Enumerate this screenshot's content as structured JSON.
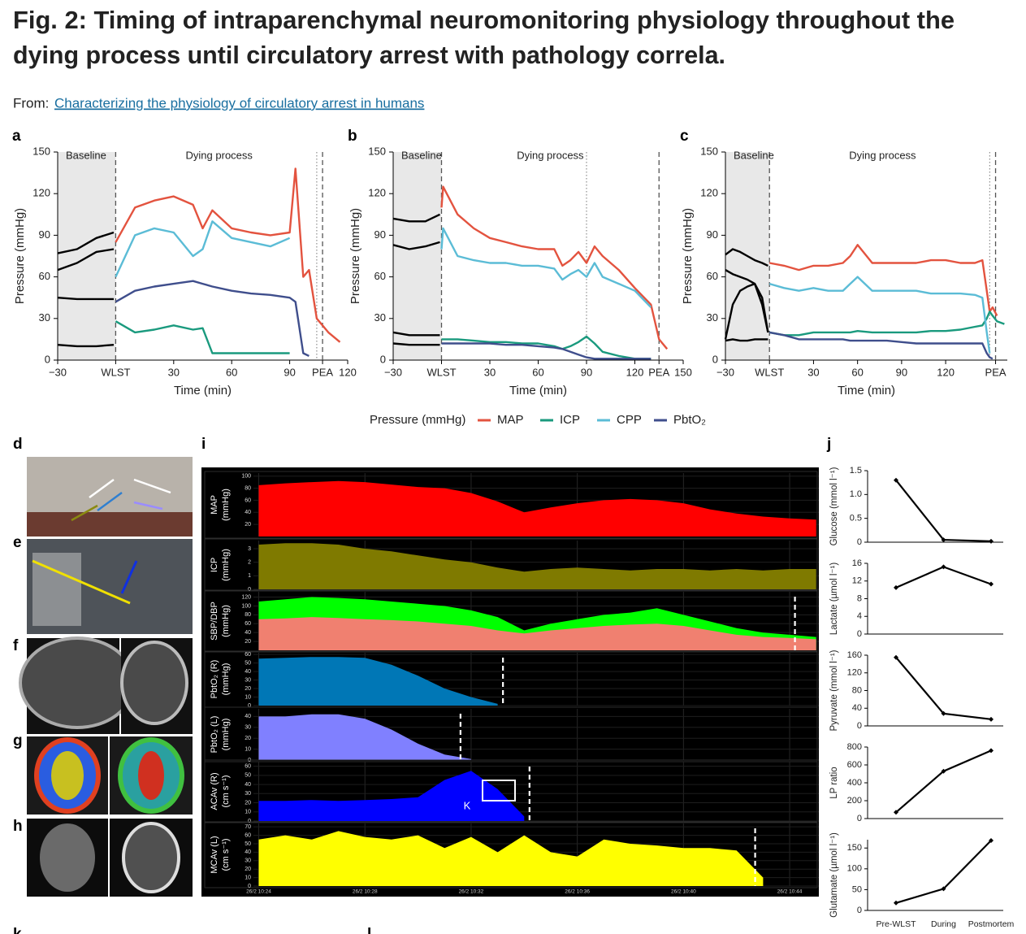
{
  "title": [
    "Fig. 2: Timing of intraparenchymal neuromonitoring physiology throughout the",
    "dying process until circulatory arrest with pathology correla."
  ],
  "source": {
    "prefix": "From:",
    "link": "Characterizing the physiology of circulatory arrest in humans"
  },
  "legend_title": "Pressure (mmHg)",
  "panel_labels": [
    "d",
    "e",
    "f",
    "g",
    "h",
    "k",
    "l"
  ],
  "chart_data": [
    {
      "type": "line",
      "panel_label": "a",
      "ylabel": "Pressure (mmHg)",
      "xlabel": "Time (min)",
      "annotations": [
        "Baseline",
        "Dying process"
      ],
      "xlim": [
        -30,
        120
      ],
      "ylim": [
        0,
        150
      ],
      "yticks": [
        0,
        30,
        60,
        90,
        120,
        150
      ],
      "xticks": [
        {
          "value": -30,
          "label": "−30"
        },
        {
          "value": 0,
          "label": "WLST"
        },
        30,
        60,
        90,
        {
          "value": 107,
          "label": "PEA"
        },
        120
      ],
      "baseline_x": [
        -30,
        0
      ],
      "baseline_color": "#000000",
      "dashed_x": [
        0,
        107
      ],
      "dotted_x": 104,
      "x": [
        -30,
        -20,
        -10,
        -1,
        0,
        10,
        20,
        30,
        40,
        45,
        50,
        60,
        70,
        80,
        90,
        93,
        97,
        100,
        104,
        110,
        116
      ],
      "series": [
        {
          "name": "MAP",
          "color": "#e3533f",
          "values": [
            77,
            80,
            88,
            92,
            85,
            110,
            115,
            118,
            112,
            95,
            108,
            95,
            92,
            90,
            92,
            138,
            60,
            65,
            30,
            20,
            13
          ]
        },
        {
          "name": "ICP",
          "color": "#1a9a7e",
          "values": [
            11,
            10,
            10,
            11,
            28,
            20,
            22,
            25,
            22,
            23,
            5,
            5,
            5,
            5,
            5,
            null,
            null,
            null,
            null,
            null,
            null
          ]
        },
        {
          "name": "CPP",
          "color": "#5bbcd6",
          "values": [
            65,
            70,
            78,
            80,
            60,
            90,
            95,
            92,
            75,
            80,
            100,
            88,
            85,
            82,
            88,
            null,
            null,
            null,
            null,
            null,
            null
          ]
        },
        {
          "name": "PbtO₂",
          "color": "#3f4e8c",
          "values": [
            45,
            44,
            44,
            44,
            42,
            50,
            53,
            55,
            57,
            55,
            53,
            50,
            48,
            47,
            45,
            42,
            5,
            3,
            null,
            null,
            null
          ]
        }
      ]
    },
    {
      "type": "line",
      "panel_label": "b",
      "ylabel": "Pressure (mmHg)",
      "xlabel": "Time (min)",
      "annotations": [
        "Baseline",
        "Dying process"
      ],
      "xlim": [
        -30,
        150
      ],
      "ylim": [
        0,
        150
      ],
      "yticks": [
        0,
        30,
        60,
        90,
        120,
        150
      ],
      "xticks": [
        {
          "value": -30,
          "label": "−30"
        },
        {
          "value": 0,
          "label": "WLST"
        },
        30,
        60,
        90,
        120,
        {
          "value": 135,
          "label": "PEA"
        },
        150
      ],
      "baseline_x": [
        -30,
        0
      ],
      "baseline_color": "#000000",
      "dashed_x": [
        0,
        135
      ],
      "dotted_x": 90,
      "x": [
        -30,
        -20,
        -10,
        -1,
        0,
        1,
        10,
        20,
        30,
        40,
        50,
        60,
        70,
        75,
        80,
        85,
        90,
        95,
        100,
        110,
        120,
        130,
        135,
        140
      ],
      "series": [
        {
          "color": "#e3533f",
          "values": [
            102,
            100,
            100,
            105,
            110,
            125,
            105,
            95,
            88,
            85,
            82,
            80,
            80,
            68,
            72,
            78,
            70,
            82,
            75,
            65,
            52,
            40,
            15,
            8
          ]
        },
        {
          "color": "#1a9a7e",
          "values": [
            20,
            18,
            18,
            18,
            15,
            15,
            15,
            14,
            13,
            13,
            12,
            12,
            10,
            8,
            10,
            13,
            17,
            12,
            6,
            3,
            1,
            1,
            null,
            null
          ]
        },
        {
          "color": "#5bbcd6",
          "values": [
            83,
            80,
            82,
            85,
            80,
            95,
            75,
            72,
            70,
            70,
            68,
            68,
            66,
            58,
            62,
            65,
            60,
            70,
            60,
            55,
            50,
            38,
            null,
            null
          ]
        },
        {
          "color": "#3f4e8c",
          "values": [
            12,
            11,
            11,
            11,
            12,
            12,
            12,
            12,
            12,
            11,
            11,
            10,
            9,
            8,
            6,
            4,
            2,
            1,
            1,
            1,
            1,
            1,
            null,
            null
          ]
        }
      ]
    },
    {
      "type": "line",
      "panel_label": "c",
      "ylabel": "Pressure (mmHg)",
      "xlabel": "Time (min)",
      "annotations": [
        "Baseline",
        "Dying process"
      ],
      "xlim": [
        -30,
        162
      ],
      "ylim": [
        0,
        150
      ],
      "yticks": [
        0,
        30,
        60,
        90,
        120,
        150
      ],
      "xticks": [
        {
          "value": -30,
          "label": "−30"
        },
        {
          "value": 0,
          "label": "WLST"
        },
        30,
        60,
        90,
        120,
        {
          "value": 154,
          "label": "PEA"
        }
      ],
      "baseline_x": [
        -30,
        0
      ],
      "baseline_color": "#000000",
      "dashed_x": [
        0,
        154
      ],
      "dotted_x": 150,
      "x": [
        -30,
        -25,
        -20,
        -15,
        -10,
        -5,
        -1,
        0,
        10,
        20,
        30,
        40,
        50,
        55,
        60,
        70,
        80,
        90,
        100,
        110,
        120,
        130,
        140,
        145,
        148,
        150,
        152,
        155,
        160
      ],
      "series": [
        {
          "color": "#e3533f",
          "values": [
            76,
            80,
            78,
            75,
            72,
            70,
            68,
            70,
            68,
            65,
            68,
            68,
            70,
            75,
            83,
            70,
            70,
            70,
            70,
            72,
            72,
            70,
            70,
            72,
            50,
            35,
            38,
            32,
            null
          ]
        },
        {
          "color": "#1a9a7e",
          "values": [
            14,
            15,
            14,
            14,
            15,
            15,
            15,
            20,
            18,
            18,
            20,
            20,
            20,
            20,
            21,
            20,
            20,
            20,
            20,
            21,
            21,
            22,
            24,
            25,
            30,
            35,
            32,
            28,
            26
          ]
        },
        {
          "color": "#5bbcd6",
          "values": [
            65,
            62,
            60,
            58,
            55,
            45,
            20,
            55,
            52,
            50,
            52,
            50,
            50,
            55,
            60,
            50,
            50,
            50,
            50,
            48,
            48,
            48,
            47,
            45,
            20,
            5,
            null,
            null,
            null
          ]
        },
        {
          "color": "#3f4e8c",
          "values": [
            15,
            40,
            50,
            53,
            55,
            40,
            20,
            20,
            18,
            15,
            15,
            15,
            15,
            14,
            14,
            14,
            14,
            13,
            12,
            12,
            12,
            12,
            12,
            12,
            5,
            2,
            1,
            null,
            null
          ]
        }
      ]
    },
    {
      "type": "area",
      "panel_label": "i",
      "xlim": [
        23.8,
        45.1
      ],
      "xticks": [
        {
          "value": 24,
          "label": "26/2 10:24"
        },
        {
          "value": 28,
          "label": "26/2 10:28"
        },
        {
          "value": 32,
          "label": "26/2 10:32"
        },
        {
          "value": 36,
          "label": "26/2 10:36"
        },
        {
          "value": 40,
          "label": "26/2 10:40"
        },
        {
          "value": 44,
          "label": "26/2 10:44"
        }
      ],
      "x": [
        24,
        25,
        26,
        27,
        28,
        29,
        30,
        31,
        32,
        33,
        34,
        35,
        36,
        37,
        38,
        39,
        40,
        41,
        42,
        43,
        44,
        45
      ],
      "tracks": [
        {
          "ylabel": [
            "MAP",
            "(mmHg)"
          ],
          "ylim": [
            0,
            105
          ],
          "yticks": [
            20,
            40,
            60,
            80,
            100
          ],
          "series": [
            {
              "color": "#ff0000",
              "values": [
                85,
                88,
                90,
                92,
                90,
                86,
                82,
                80,
                72,
                58,
                40,
                48,
                55,
                60,
                62,
                60,
                55,
                45,
                38,
                33,
                30,
                28
              ]
            }
          ]
        },
        {
          "ylabel": [
            "ICP",
            "(mmHg)"
          ],
          "ylim": [
            0,
            3.6
          ],
          "yticks": [
            0,
            1,
            2,
            3
          ],
          "series": [
            {
              "color": "#7f7a00",
              "values": [
                3.3,
                3.4,
                3.4,
                3.3,
                3.0,
                2.8,
                2.5,
                2.2,
                2.0,
                1.6,
                1.3,
                1.5,
                1.6,
                1.5,
                1.4,
                1.5,
                1.5,
                1.4,
                1.5,
                1.4,
                1.5,
                1.5
              ]
            }
          ]
        },
        {
          "ylabel": [
            "SBP/DBP",
            "(mmHg)"
          ],
          "ylim": [
            0,
            132
          ],
          "yticks": [
            20,
            40,
            60,
            80,
            100,
            120
          ],
          "marker_x": 44.2,
          "series": [
            {
              "color": "#00ff00",
              "values": [
                110,
                115,
                120,
                118,
                115,
                110,
                105,
                100,
                90,
                75,
                45,
                60,
                70,
                80,
                85,
                95,
                80,
                65,
                50,
                40,
                35,
                30
              ]
            },
            {
              "color": "#f08070",
              "values": [
                70,
                72,
                75,
                73,
                70,
                68,
                65,
                60,
                55,
                45,
                38,
                45,
                50,
                55,
                58,
                60,
                55,
                45,
                35,
                30,
                28,
                25
              ]
            }
          ]
        },
        {
          "ylabel": [
            "PbtO₂ (R)",
            "(mmHg)"
          ],
          "ylim": [
            0,
            62
          ],
          "yticks": [
            0,
            10,
            20,
            30,
            40,
            50,
            60
          ],
          "marker_x": 33.2,
          "series": [
            {
              "color": "#0077b6",
              "values": [
                55,
                56,
                57,
                57,
                56,
                48,
                35,
                20,
                10,
                2,
                null,
                null,
                null,
                null,
                null,
                null,
                null,
                null,
                null,
                null,
                null,
                null
              ]
            }
          ]
        },
        {
          "ylabel": [
            "PbtO₂ (L)",
            "(mmHg)"
          ],
          "ylim": [
            0,
            47
          ],
          "yticks": [
            0,
            10,
            20,
            30,
            40
          ],
          "marker_x": 31.6,
          "series": [
            {
              "color": "#8080ff",
              "values": [
                40,
                40,
                42,
                42,
                38,
                28,
                15,
                5,
                1,
                null,
                null,
                null,
                null,
                null,
                null,
                null,
                null,
                null,
                null,
                null,
                null,
                null
              ]
            }
          ]
        },
        {
          "ylabel": [
            "ACAv (R)",
            "(cm s⁻¹)"
          ],
          "ylim": [
            0,
            65
          ],
          "yticks": [
            0,
            10,
            20,
            30,
            40,
            50,
            60
          ],
          "marker_x": 34.2,
          "annotation": "K",
          "series": [
            {
              "color": "#0000ff",
              "values": [
                22,
                22,
                23,
                22,
                23,
                24,
                26,
                45,
                55,
                35,
                5,
                null,
                null,
                null,
                null,
                null,
                null,
                null,
                null,
                null,
                null,
                null
              ]
            }
          ]
        },
        {
          "ylabel": [
            "MCAv (L)",
            "(cm s⁻¹)"
          ],
          "ylim": [
            0,
            74
          ],
          "yticks": [
            0,
            10,
            20,
            30,
            40,
            50,
            60,
            70
          ],
          "marker_x": 42.7,
          "series": [
            {
              "color": "#ffff00",
              "values": [
                55,
                60,
                55,
                65,
                58,
                55,
                60,
                45,
                58,
                40,
                60,
                40,
                35,
                55,
                50,
                48,
                45,
                45,
                42,
                10,
                null,
                null
              ]
            }
          ]
        }
      ]
    },
    {
      "type": "line",
      "panel_label": "j",
      "categories": [
        "Pre-WLST",
        "During",
        "Postmortem"
      ],
      "panels": [
        {
          "ylabel": "Glucose (mmol l⁻¹)",
          "ylim": [
            0,
            1.5
          ],
          "yticks": [
            0,
            0.5,
            {
              "value": 1,
              "label": "1.0"
            },
            1.5
          ],
          "values": [
            1.3,
            0.05,
            0.02
          ]
        },
        {
          "ylabel": "Lactate (µmol l⁻¹)",
          "ylim": [
            0,
            16
          ],
          "yticks": [
            0,
            4,
            8,
            12,
            16
          ],
          "values": [
            10.5,
            15.2,
            11.3
          ]
        },
        {
          "ylabel": "Pyruvate (mmol l⁻¹)",
          "ylim": [
            0,
            160
          ],
          "yticks": [
            0,
            40,
            80,
            120,
            160
          ],
          "values": [
            155,
            28,
            15
          ]
        },
        {
          "ylabel": "LP ratio",
          "ylim": [
            0,
            800
          ],
          "yticks": [
            0,
            200,
            400,
            600,
            800
          ],
          "values": [
            70,
            530,
            760
          ]
        },
        {
          "ylabel": "Glutamate (µmol l⁻¹)",
          "ylim": [
            0,
            170
          ],
          "yticks": [
            0,
            50,
            100,
            150
          ],
          "values": [
            18,
            52,
            168
          ]
        }
      ]
    }
  ]
}
